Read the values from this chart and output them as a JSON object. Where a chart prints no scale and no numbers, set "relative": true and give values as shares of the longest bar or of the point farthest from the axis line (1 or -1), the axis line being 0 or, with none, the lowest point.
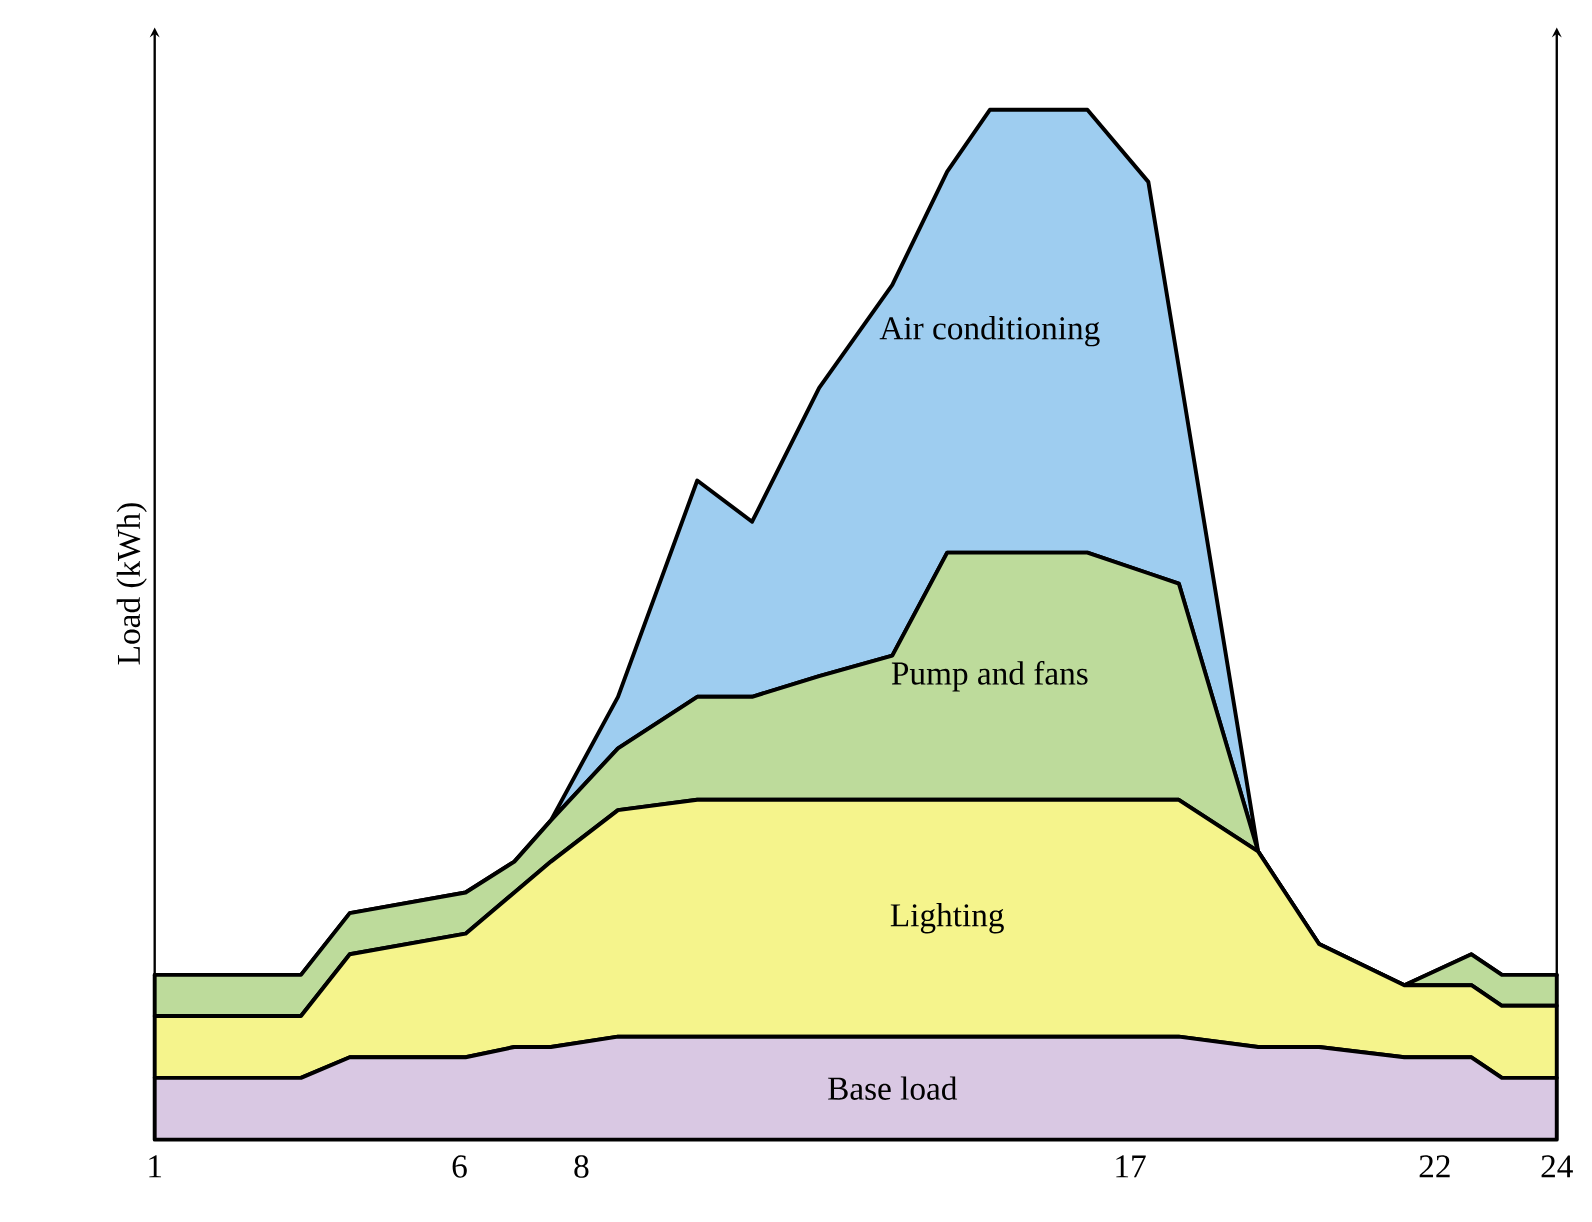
{
  "chart_data": {
    "type": "area",
    "stacked": true,
    "relative": true,
    "ylabel": "Load (kWh)",
    "xlim": [
      1,
      24
    ],
    "xticks": [
      1,
      6,
      8,
      17,
      22,
      24
    ],
    "x": [
      1,
      3.4,
      4.2,
      6.1,
      6.9,
      7.5,
      8.6,
      9.9,
      10.8,
      11.9,
      13.1,
      14.0,
      14.7,
      16.3,
      17.3,
      17.8,
      19.1,
      20.1,
      21.5,
      22.6,
      23.1,
      24
    ],
    "series": [
      {
        "name": "Base load",
        "color": "#d9c8e3",
        "values": [
          0.06,
          0.06,
          0.08,
          0.08,
          0.09,
          0.09,
          0.1,
          0.1,
          0.1,
          0.1,
          0.1,
          0.1,
          0.1,
          0.1,
          0.1,
          0.1,
          0.09,
          0.09,
          0.08,
          0.08,
          0.06,
          0.06
        ]
      },
      {
        "name": "Lighting",
        "color": "#f5f48c",
        "values": [
          0.06,
          0.06,
          0.1,
          0.12,
          0.15,
          0.18,
          0.22,
          0.23,
          0.23,
          0.23,
          0.23,
          0.23,
          0.23,
          0.23,
          0.23,
          0.23,
          0.19,
          0.1,
          0.07,
          0.07,
          0.07,
          0.07
        ]
      },
      {
        "name": "Pump and fans",
        "color": "#bddb9b",
        "values": [
          0.04,
          0.04,
          0.04,
          0.04,
          0.03,
          0.04,
          0.06,
          0.1,
          0.1,
          0.12,
          0.14,
          0.24,
          0.24,
          0.24,
          0.22,
          0.21,
          0,
          0,
          0,
          0.03,
          0.03,
          0.03
        ]
      },
      {
        "name": "Air conditioning",
        "color": "#9ecdf0",
        "values": [
          0,
          0,
          0,
          0,
          0,
          0,
          0.05,
          0.21,
          0.17,
          0.28,
          0.36,
          0.37,
          0.43,
          0.43,
          0.38,
          0.21,
          0,
          0,
          0,
          0,
          0,
          0
        ]
      }
    ]
  }
}
